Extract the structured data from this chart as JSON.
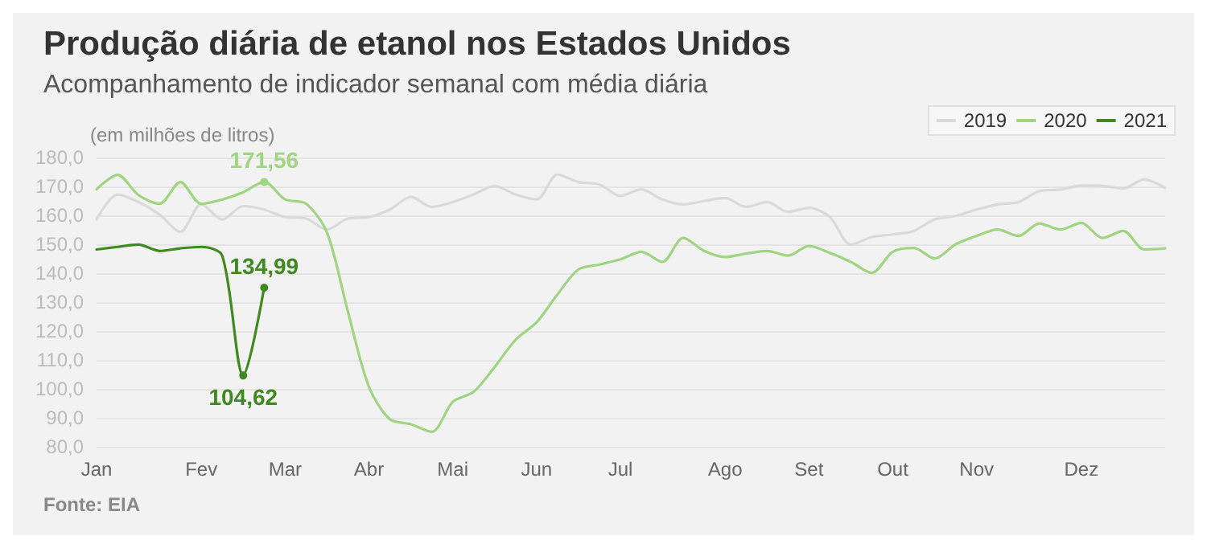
{
  "chart_data": {
    "type": "line",
    "title": "Produção diária de etanol nos Estados Unidos",
    "subtitle": "Acompanhamento de indicador semanal com média diária",
    "ylabel": "(em milhões de litros)",
    "annotations": [
      "Fonte: EIA"
    ],
    "categories": [
      "Jan",
      null,
      null,
      null,
      null,
      "Fev",
      null,
      null,
      null,
      "Mar",
      null,
      null,
      null,
      "Abr",
      null,
      null,
      null,
      "Mai",
      null,
      null,
      null,
      "Jun",
      null,
      null,
      null,
      "Jul",
      null,
      null,
      null,
      null,
      "Ago",
      null,
      null,
      null,
      "Set",
      null,
      null,
      null,
      "Out",
      null,
      null,
      null,
      "Nov",
      null,
      null,
      null,
      null,
      "Dez",
      null,
      null,
      null,
      null
    ],
    "series": [
      {
        "name": "2019",
        "color": "#d9d9d9",
        "values": [
          158.6,
          167.2,
          164.6,
          160.3,
          154.3,
          163.8,
          158.6,
          163.2,
          162,
          159.4,
          158.9,
          155.1,
          158.9,
          159.4,
          162,
          166.4,
          162.9,
          164.6,
          167.2,
          170.2,
          167.2,
          165.5,
          174.1,
          171.5,
          170.7,
          166.7,
          169,
          165.5,
          163.8,
          165,
          166,
          162.9,
          164.6,
          161.2,
          162.6,
          159.4,
          149.9,
          152.5,
          153.4,
          154.6,
          158.6,
          159.8,
          162,
          163.8,
          164.6,
          168.4,
          168.9,
          170.3,
          170.2,
          169.3,
          172.4,
          169.5
        ]
      },
      {
        "name": "2020",
        "color": "#9fd483",
        "values": [
          169,
          174,
          167,
          164,
          171.5,
          164,
          165.5,
          168,
          171.56,
          165.5,
          164,
          154,
          126.6,
          100.7,
          89.5,
          87.8,
          85.2,
          95.5,
          99,
          107.6,
          117,
          123,
          132.7,
          141.3,
          143,
          144.8,
          147.4,
          143.9,
          152.2,
          147.7,
          145.6,
          146.8,
          147.7,
          146.1,
          149.4,
          147,
          143.9,
          140.1,
          147.4,
          148.7,
          145.1,
          150,
          152.9,
          155.1,
          152.9,
          157.2,
          155.1,
          157.4,
          152.2,
          154.6,
          148.2,
          148.6
        ],
        "value_labels": [
          null,
          null,
          null,
          null,
          null,
          null,
          null,
          null,
          "171,56",
          null,
          null,
          null,
          null,
          null,
          null,
          null,
          null,
          null,
          null,
          null,
          null,
          null,
          null,
          null,
          null,
          null,
          null,
          null,
          null,
          null,
          null,
          null,
          null,
          null,
          null,
          null,
          null,
          null,
          null,
          null,
          null,
          null,
          null,
          null,
          null,
          null,
          null,
          null,
          null,
          null,
          null,
          null
        ]
      },
      {
        "name": "2021",
        "color": "#3f8a1f",
        "values": [
          148.2,
          149.1,
          149.9,
          147.7,
          148.6,
          149.1,
          146,
          104.62,
          134.99,
          null,
          null,
          null,
          null,
          null,
          null,
          null,
          null,
          null,
          null,
          null,
          null,
          null,
          null,
          null,
          null,
          null,
          null,
          null,
          null,
          null,
          null,
          null,
          null,
          null,
          null,
          null,
          null,
          null,
          null,
          null,
          null,
          null,
          null,
          null,
          null,
          null,
          null,
          null,
          null,
          null,
          null,
          null
        ],
        "value_labels": [
          null,
          null,
          null,
          null,
          null,
          null,
          null,
          "104,62",
          "134,99",
          null,
          null,
          null,
          null,
          null,
          null,
          null,
          null,
          null,
          null,
          null,
          null,
          null,
          null,
          null,
          null,
          null,
          null,
          null,
          null,
          null,
          null,
          null,
          null,
          null,
          null,
          null,
          null,
          null,
          null,
          null,
          null,
          null,
          null,
          null,
          null,
          null,
          null,
          null,
          null,
          null,
          null,
          null
        ]
      }
    ],
    "ylim": [
      80,
      180
    ],
    "yticks": [
      {
        "value": 80,
        "label": "80,0"
      },
      {
        "value": 90,
        "label": "90,0"
      },
      {
        "value": 100,
        "label": "100,0"
      },
      {
        "value": 110,
        "label": "110,0"
      },
      {
        "value": 120,
        "label": "120,0"
      },
      {
        "value": 130,
        "label": "130,0"
      },
      {
        "value": 140,
        "label": "140,0"
      },
      {
        "value": 150,
        "label": "150,0"
      },
      {
        "value": 160,
        "label": "160,0"
      },
      {
        "value": 170,
        "label": "170,0"
      },
      {
        "value": 180,
        "label": "180,0"
      }
    ],
    "grid": "y",
    "legend": "top right",
    "marker": "none",
    "line_style": "solid"
  }
}
